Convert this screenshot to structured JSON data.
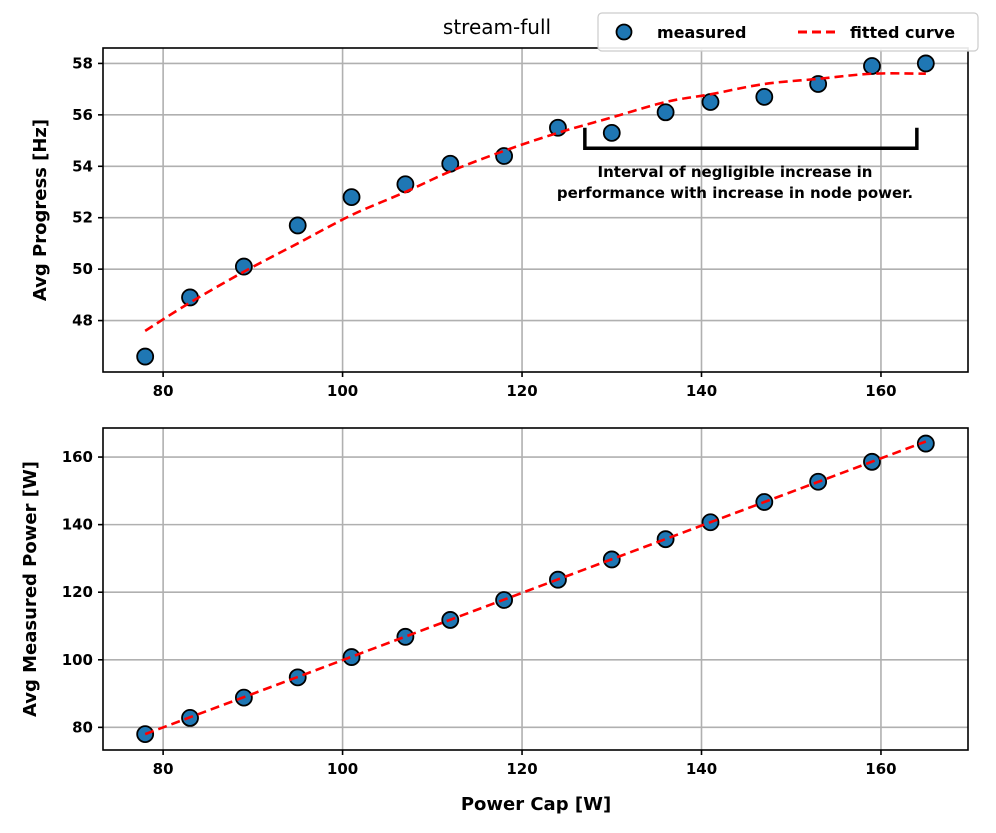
{
  "chart_data": {
    "title": "stream-full",
    "xlabel": "Power Cap [W]",
    "legend": {
      "placement": "top-right",
      "entries": [
        "measured",
        "fitted curve"
      ]
    },
    "colors": {
      "marker": "#1f77b4",
      "marker_edge": "#000000",
      "fit": "#ff0000",
      "grid": "#b0b0b0"
    },
    "subplots": [
      {
        "type": "scatter",
        "ylabel": "Avg Progress [Hz]",
        "xlim": [
          73.3,
          169.7
        ],
        "ylim": [
          46.0,
          58.6
        ],
        "xticks": [
          80,
          100,
          120,
          140,
          160
        ],
        "yticks": [
          48,
          50,
          52,
          54,
          56,
          58
        ],
        "grid": true,
        "measured": {
          "x": [
            78,
            83,
            89,
            95,
            101,
            107,
            112,
            118,
            124,
            130,
            136,
            141,
            147,
            153,
            159,
            165
          ],
          "y": [
            46.6,
            48.9,
            50.1,
            51.7,
            52.8,
            53.3,
            54.1,
            54.4,
            55.5,
            55.3,
            56.1,
            56.5,
            56.7,
            57.2,
            57.9,
            58.0
          ]
        },
        "fitted_curve": {
          "x": [
            78,
            83,
            89,
            95,
            101,
            107,
            112,
            118,
            124,
            130,
            136,
            141,
            147,
            153,
            159,
            165
          ],
          "y": [
            47.6,
            48.7,
            49.9,
            51.0,
            52.1,
            53.0,
            53.8,
            54.6,
            55.3,
            55.9,
            56.5,
            56.8,
            57.2,
            57.4,
            57.6,
            57.6
          ]
        },
        "annotation": {
          "text_line1": "Interval of negligible increase in",
          "text_line2": "performance with increase in node power.",
          "bracket_x": [
            127,
            164
          ],
          "bracket_y": 54.7,
          "bracket_tick_top": 55.5
        }
      },
      {
        "type": "scatter",
        "ylabel": "Avg Measured Power [W]",
        "xlim": [
          73.3,
          169.7
        ],
        "ylim": [
          73.3,
          168.6
        ],
        "xticks": [
          80,
          100,
          120,
          140,
          160
        ],
        "yticks": [
          80,
          100,
          120,
          140,
          160
        ],
        "grid": true,
        "measured": {
          "x": [
            78,
            83,
            89,
            95,
            101,
            107,
            112,
            118,
            124,
            130,
            136,
            141,
            147,
            153,
            159,
            165
          ],
          "y": [
            78.0,
            82.8,
            88.8,
            94.8,
            100.8,
            106.8,
            111.8,
            117.7,
            123.7,
            129.7,
            135.7,
            140.7,
            146.7,
            152.7,
            158.6,
            164.0
          ]
        },
        "fitted_curve": {
          "x": [
            78,
            165
          ],
          "y": [
            78.0,
            164.6
          ]
        }
      }
    ]
  }
}
